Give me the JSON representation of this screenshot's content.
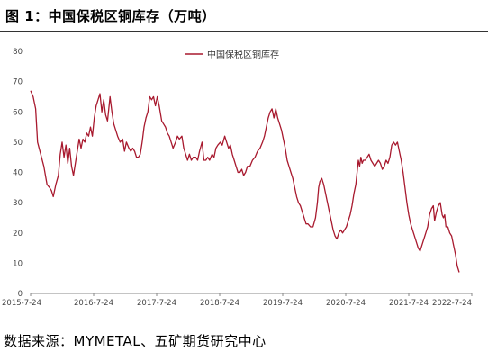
{
  "figure": {
    "title": "图 1：中国保税区铜库存（万吨）",
    "source": "数据来源：MYMETAL、五矿期货研究中心"
  },
  "colors": {
    "series": "#a8192e",
    "axis": "#888888",
    "text": "#444444"
  },
  "chart_data": {
    "type": "line",
    "title": "",
    "xlabel": "",
    "ylabel": "",
    "ylim": [
      0,
      80
    ],
    "yticks": [
      0,
      10,
      20,
      30,
      40,
      50,
      60,
      70,
      80
    ],
    "xticks": [
      "2015-7-24",
      "2016-7-24",
      "2017-7-24",
      "2018-7-24",
      "2019-7-24",
      "2020-7-24",
      "2021-7-24",
      "2022-7-24"
    ],
    "grid": false,
    "legend_position": "top-center",
    "x_unit": "years since 2015-7-24",
    "series": [
      {
        "name": "中国保税区铜库存",
        "points": [
          [
            0.0,
            67
          ],
          [
            0.04,
            65
          ],
          [
            0.08,
            61
          ],
          [
            0.11,
            50
          ],
          [
            0.16,
            46
          ],
          [
            0.21,
            42
          ],
          [
            0.26,
            36
          ],
          [
            0.3,
            35
          ],
          [
            0.33,
            34
          ],
          [
            0.36,
            32
          ],
          [
            0.4,
            36
          ],
          [
            0.44,
            39
          ],
          [
            0.47,
            46
          ],
          [
            0.5,
            50
          ],
          [
            0.53,
            45
          ],
          [
            0.56,
            49
          ],
          [
            0.59,
            43
          ],
          [
            0.62,
            48
          ],
          [
            0.65,
            42
          ],
          [
            0.68,
            39
          ],
          [
            0.71,
            43
          ],
          [
            0.74,
            47
          ],
          [
            0.77,
            51
          ],
          [
            0.8,
            48
          ],
          [
            0.83,
            51
          ],
          [
            0.86,
            50
          ],
          [
            0.89,
            53
          ],
          [
            0.92,
            52
          ],
          [
            0.95,
            55
          ],
          [
            0.98,
            52
          ],
          [
            1.01,
            58
          ],
          [
            1.04,
            62
          ],
          [
            1.07,
            64
          ],
          [
            1.1,
            66
          ],
          [
            1.13,
            60
          ],
          [
            1.16,
            64
          ],
          [
            1.19,
            59
          ],
          [
            1.22,
            57
          ],
          [
            1.26,
            65
          ],
          [
            1.29,
            60
          ],
          [
            1.32,
            56
          ],
          [
            1.35,
            54
          ],
          [
            1.38,
            52
          ],
          [
            1.42,
            50
          ],
          [
            1.46,
            51
          ],
          [
            1.49,
            47
          ],
          [
            1.52,
            50
          ],
          [
            1.56,
            48
          ],
          [
            1.59,
            47
          ],
          [
            1.62,
            48
          ],
          [
            1.65,
            47
          ],
          [
            1.68,
            45
          ],
          [
            1.71,
            45
          ],
          [
            1.74,
            46
          ],
          [
            1.77,
            50
          ],
          [
            1.8,
            55
          ],
          [
            1.83,
            58
          ],
          [
            1.86,
            60
          ],
          [
            1.89,
            65
          ],
          [
            1.92,
            64
          ],
          [
            1.95,
            65
          ],
          [
            1.98,
            62
          ],
          [
            2.01,
            65
          ],
          [
            2.04,
            62
          ],
          [
            2.08,
            57
          ],
          [
            2.11,
            56
          ],
          [
            2.14,
            55
          ],
          [
            2.17,
            53
          ],
          [
            2.2,
            52
          ],
          [
            2.23,
            50
          ],
          [
            2.26,
            48
          ],
          [
            2.3,
            50
          ],
          [
            2.33,
            52
          ],
          [
            2.36,
            51
          ],
          [
            2.4,
            52
          ],
          [
            2.43,
            48
          ],
          [
            2.46,
            46
          ],
          [
            2.49,
            44
          ],
          [
            2.52,
            46
          ],
          [
            2.55,
            44
          ],
          [
            2.58,
            45
          ],
          [
            2.62,
            45
          ],
          [
            2.65,
            44
          ],
          [
            2.68,
            47
          ],
          [
            2.72,
            50
          ],
          [
            2.75,
            44
          ],
          [
            2.78,
            44
          ],
          [
            2.81,
            45
          ],
          [
            2.84,
            44
          ],
          [
            2.88,
            46
          ],
          [
            2.91,
            45
          ],
          [
            2.94,
            48
          ],
          [
            2.97,
            49
          ],
          [
            3.01,
            50
          ],
          [
            3.04,
            49
          ],
          [
            3.08,
            52
          ],
          [
            3.11,
            50
          ],
          [
            3.14,
            48
          ],
          [
            3.17,
            49
          ],
          [
            3.2,
            46
          ],
          [
            3.23,
            44
          ],
          [
            3.26,
            42
          ],
          [
            3.29,
            40
          ],
          [
            3.32,
            40
          ],
          [
            3.35,
            41
          ],
          [
            3.38,
            39
          ],
          [
            3.41,
            40
          ],
          [
            3.44,
            42
          ],
          [
            3.48,
            42
          ],
          [
            3.52,
            44
          ],
          [
            3.56,
            45
          ],
          [
            3.6,
            47
          ],
          [
            3.64,
            48
          ],
          [
            3.68,
            50
          ],
          [
            3.71,
            52
          ],
          [
            3.74,
            55
          ],
          [
            3.77,
            58
          ],
          [
            3.8,
            60
          ],
          [
            3.83,
            61
          ],
          [
            3.86,
            58
          ],
          [
            3.89,
            61
          ],
          [
            3.92,
            58
          ],
          [
            3.95,
            56
          ],
          [
            3.98,
            54
          ],
          [
            4.01,
            51
          ],
          [
            4.04,
            48
          ],
          [
            4.07,
            44
          ],
          [
            4.1,
            42
          ],
          [
            4.13,
            40
          ],
          [
            4.16,
            38
          ],
          [
            4.19,
            35
          ],
          [
            4.22,
            32
          ],
          [
            4.25,
            30
          ],
          [
            4.28,
            29
          ],
          [
            4.31,
            27
          ],
          [
            4.34,
            25
          ],
          [
            4.37,
            23
          ],
          [
            4.4,
            23
          ],
          [
            4.44,
            22
          ],
          [
            4.48,
            22
          ],
          [
            4.52,
            25
          ],
          [
            4.55,
            30
          ],
          [
            4.57,
            35
          ],
          [
            4.59,
            37
          ],
          [
            4.62,
            38
          ],
          [
            4.65,
            36
          ],
          [
            4.68,
            33
          ],
          [
            4.71,
            30
          ],
          [
            4.74,
            27
          ],
          [
            4.77,
            24
          ],
          [
            4.8,
            21
          ],
          [
            4.83,
            19
          ],
          [
            4.86,
            18
          ],
          [
            4.89,
            20
          ],
          [
            4.92,
            21
          ],
          [
            4.95,
            20
          ],
          [
            4.98,
            21
          ],
          [
            5.01,
            22
          ],
          [
            5.04,
            24
          ],
          [
            5.07,
            26
          ],
          [
            5.1,
            29
          ],
          [
            5.13,
            33
          ],
          [
            5.16,
            36
          ],
          [
            5.18,
            40
          ],
          [
            5.2,
            44
          ],
          [
            5.22,
            42
          ],
          [
            5.24,
            45
          ],
          [
            5.26,
            43
          ],
          [
            5.28,
            44
          ],
          [
            5.31,
            44
          ],
          [
            5.34,
            45
          ],
          [
            5.37,
            46
          ],
          [
            5.4,
            44
          ],
          [
            5.43,
            43
          ],
          [
            5.46,
            42
          ],
          [
            5.49,
            43
          ],
          [
            5.52,
            44
          ],
          [
            5.55,
            43
          ],
          [
            5.58,
            41
          ],
          [
            5.61,
            42
          ],
          [
            5.64,
            44
          ],
          [
            5.67,
            43
          ],
          [
            5.7,
            45
          ],
          [
            5.73,
            49
          ],
          [
            5.76,
            50
          ],
          [
            5.79,
            49
          ],
          [
            5.82,
            50
          ],
          [
            5.85,
            47
          ],
          [
            5.88,
            44
          ],
          [
            5.91,
            40
          ],
          [
            5.94,
            35
          ],
          [
            5.97,
            30
          ],
          [
            6.0,
            26
          ],
          [
            6.03,
            23
          ],
          [
            6.06,
            21
          ],
          [
            6.09,
            19
          ],
          [
            6.12,
            17
          ],
          [
            6.15,
            15
          ],
          [
            6.18,
            14
          ],
          [
            6.21,
            16
          ],
          [
            6.24,
            18
          ],
          [
            6.27,
            20
          ],
          [
            6.3,
            22
          ],
          [
            6.33,
            26
          ],
          [
            6.36,
            28
          ],
          [
            6.39,
            29
          ],
          [
            6.41,
            24
          ],
          [
            6.44,
            27
          ],
          [
            6.47,
            29
          ],
          [
            6.5,
            30
          ],
          [
            6.53,
            26
          ],
          [
            6.55,
            25
          ],
          [
            6.57,
            26
          ],
          [
            6.59,
            22
          ],
          [
            6.62,
            22
          ],
          [
            6.65,
            20
          ],
          [
            6.68,
            19
          ],
          [
            6.71,
            16
          ],
          [
            6.74,
            13
          ],
          [
            6.77,
            9
          ],
          [
            6.8,
            7
          ]
        ]
      }
    ]
  }
}
